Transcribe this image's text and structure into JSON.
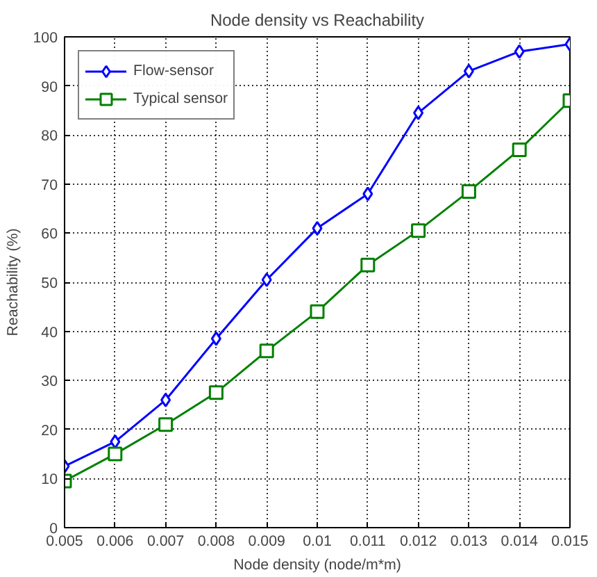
{
  "chart_data": {
    "type": "line",
    "title": "Node density vs Reachability",
    "xlabel": "Node density (node/m*m)",
    "ylabel": "Reachability (%)",
    "x": [
      0.005,
      0.006,
      0.007,
      0.008,
      0.009,
      0.01,
      0.011,
      0.012,
      0.013,
      0.014,
      0.015
    ],
    "series": [
      {
        "name": "Flow-sensor",
        "color": "#0000ff",
        "marker": "diamond",
        "values": [
          12.5,
          17.5,
          26,
          38.5,
          50.5,
          61,
          68,
          84.5,
          93,
          97,
          98.5
        ]
      },
      {
        "name": "Typical sensor",
        "color": "#008000",
        "marker": "square",
        "values": [
          9.5,
          15,
          21,
          27.5,
          36,
          44,
          53.5,
          60.5,
          68.5,
          77,
          87
        ]
      }
    ],
    "xlim": [
      0.005,
      0.015
    ],
    "xticks": [
      0.005,
      0.006,
      0.007,
      0.008,
      0.009,
      0.01,
      0.011,
      0.012,
      0.013,
      0.014,
      0.015
    ],
    "ylim": [
      0,
      100
    ],
    "yticks": [
      0,
      10,
      20,
      30,
      40,
      50,
      60,
      70,
      80,
      90,
      100
    ],
    "grid": true,
    "legend": "top left",
    "line_style": "solid"
  }
}
